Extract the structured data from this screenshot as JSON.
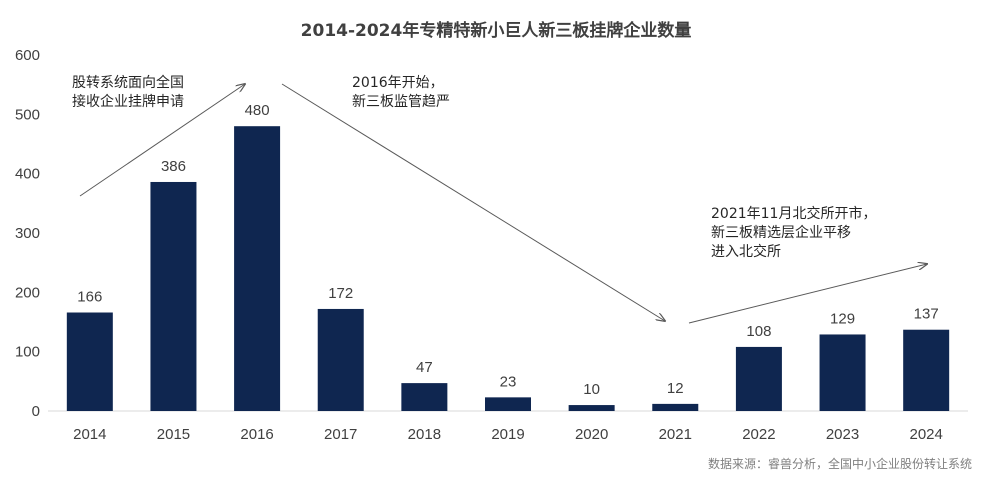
{
  "chart_data": {
    "type": "bar",
    "title": "2014-2024年专精特新小巨人新三板挂牌企业数量",
    "categories": [
      "2014",
      "2015",
      "2016",
      "2017",
      "2018",
      "2019",
      "2020",
      "2021",
      "2022",
      "2023",
      "2024"
    ],
    "values": [
      166,
      386,
      480,
      172,
      47,
      23,
      10,
      12,
      108,
      129,
      137
    ],
    "ylim": [
      0,
      600
    ],
    "yticks": [
      0,
      100,
      200,
      300,
      400,
      500,
      600
    ],
    "bar_color": "#0f2650",
    "grid": false,
    "legend": "none",
    "annotations": [
      {
        "lines": [
          "股转系统面向全国",
          "接收企业挂牌申请"
        ]
      },
      {
        "lines": [
          "2016年开始，",
          "新三板监管趋严"
        ]
      },
      {
        "lines": [
          "2021年11月北交所开市，",
          "新三板精选层企业平移",
          "进入北交所"
        ]
      }
    ],
    "source": "数据来源：睿兽分析，全国中小企业股份转让系统"
  }
}
